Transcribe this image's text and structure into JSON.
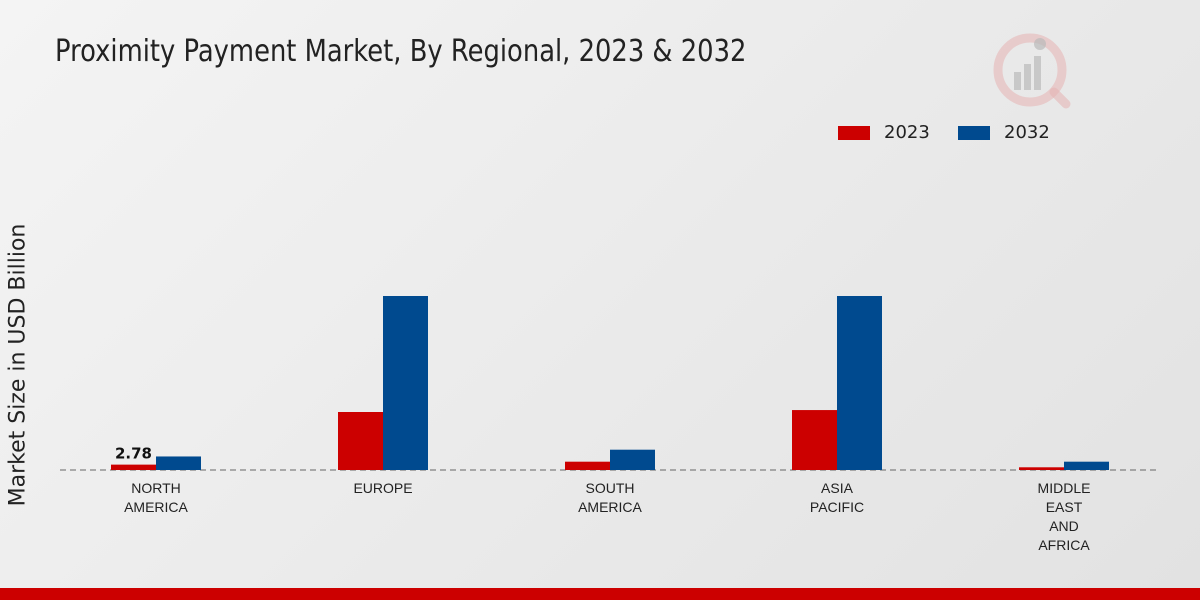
{
  "chart_data": {
    "type": "bar",
    "title": "Proximity Payment Market, By Regional, 2023 & 2032",
    "xlabel": "",
    "ylabel": "Market Size in USD Billion",
    "categories": [
      [
        "NORTH",
        "AMERICA"
      ],
      [
        "EUROPE"
      ],
      [
        "SOUTH",
        "AMERICA"
      ],
      [
        "ASIA",
        "PACIFIC"
      ],
      [
        "MIDDLE",
        "EAST",
        "AND",
        "AFRICA"
      ]
    ],
    "series": [
      {
        "name": "2023",
        "color": "#cc0000",
        "values": [
          2.78,
          30.0,
          4.3,
          31.0,
          1.4
        ]
      },
      {
        "name": "2032",
        "color": "#004a8f",
        "values": [
          7.0,
          90.0,
          10.5,
          90.0,
          4.3
        ]
      }
    ],
    "data_labels": [
      {
        "series": 0,
        "index": 0,
        "text": "2.78"
      }
    ],
    "ylim": [
      0,
      150
    ],
    "grid": false,
    "legend_position": "top-right"
  }
}
